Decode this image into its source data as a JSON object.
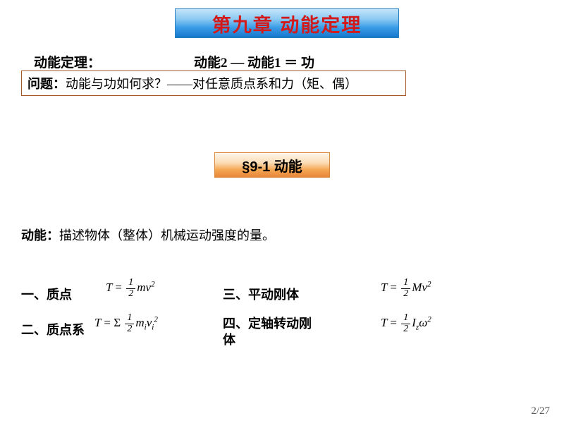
{
  "title": "第九章 动能定理",
  "theorem_label": "动能定理：",
  "theorem_eq": "动能2 — 动能1 ＝ 功",
  "question_label": "问题：",
  "question_text": "动能与功如何求？——对任意质点系和力（矩、偶）",
  "section_title": "§9-1 动能",
  "def_label": "动能：",
  "def_text": "描述物体（整体）机械运动强度的量。",
  "items": {
    "one": "一、质点",
    "two": "二、质点系",
    "three": "三、平动刚体",
    "four": "四、定轴转动刚体"
  },
  "page_num": "2/27"
}
